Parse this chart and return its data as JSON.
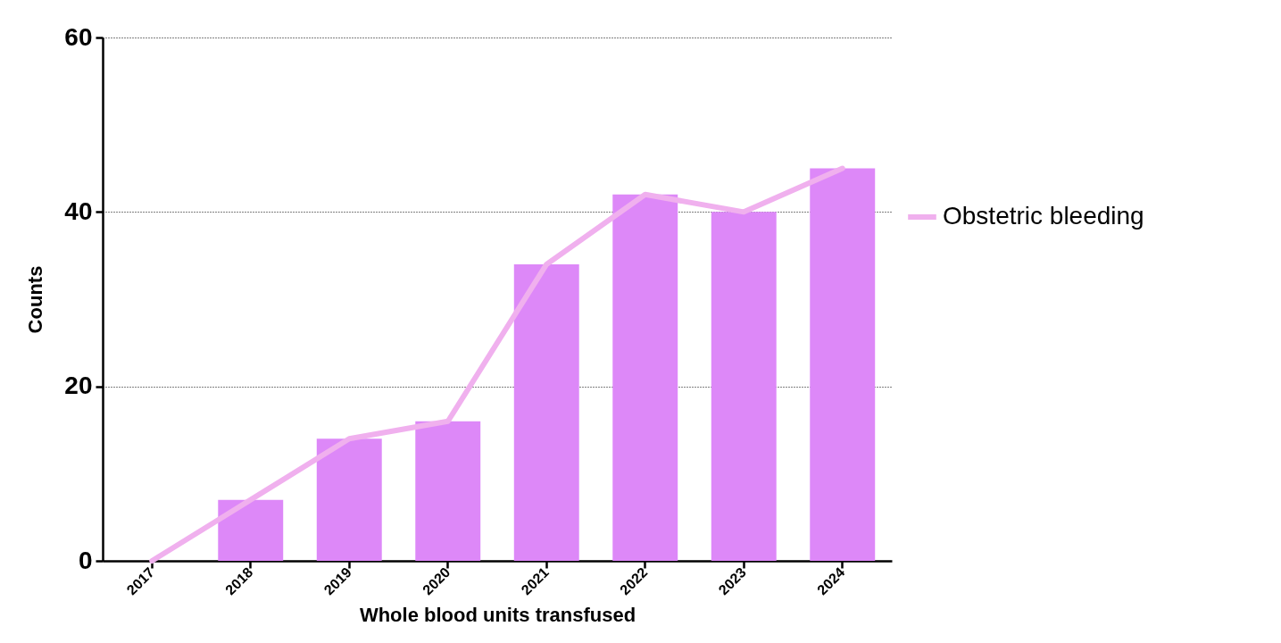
{
  "chart_data": {
    "type": "bar",
    "xlabel": "Whole blood units transfused",
    "ylabel": "Counts",
    "categories": [
      "2017",
      "2018",
      "2019",
      "2020",
      "2021",
      "2022",
      "2023",
      "2024"
    ],
    "series": [
      {
        "color": "#dd88f8",
        "values": [
          0,
          7,
          14,
          16,
          34,
          42,
          40,
          45
        ]
      },
      {
        "type": "line",
        "name": "Obstetric bleeding",
        "color": "#f0b0ee",
        "values": [
          0,
          7,
          14,
          16,
          34,
          42,
          40,
          45
        ]
      }
    ],
    "ylim": [
      0,
      60
    ],
    "yticks": [
      0,
      20,
      40,
      60
    ],
    "grid": "y",
    "legend": "right"
  }
}
